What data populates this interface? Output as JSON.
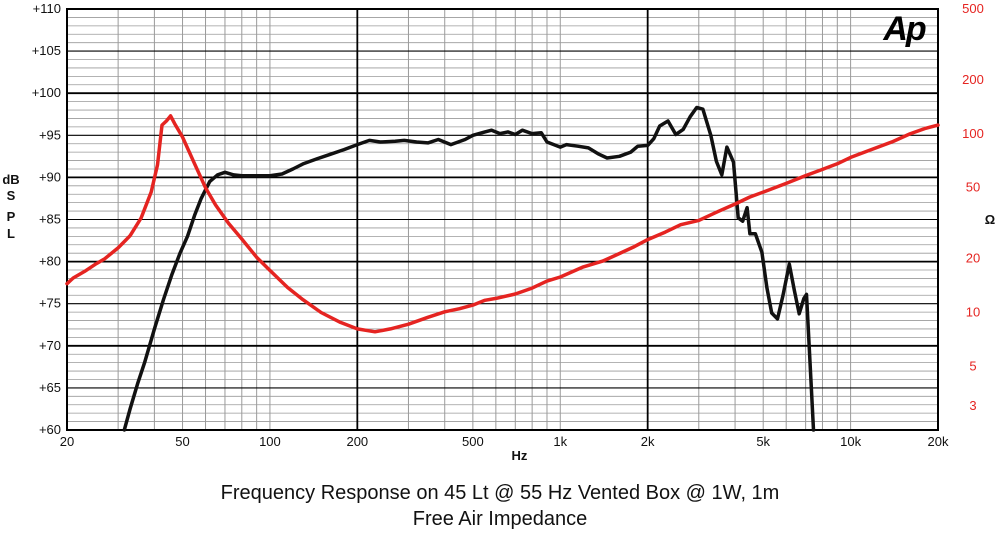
{
  "colors": {
    "spl": "#111111",
    "impedance": "#e52421",
    "grid_major": "#000000",
    "grid_minor": "#9a9a9a"
  },
  "logo": {
    "text": "Ap"
  },
  "caption": {
    "line1": "Frequency Response on 45 Lt @ 55 Hz Vented Box @ 1W, 1m",
    "line2": "Free Air Impedance"
  },
  "chart_data": {
    "type": "line",
    "title": "",
    "xlabel": "Hz",
    "ylabel_left": [
      "dB",
      "S",
      "P",
      "L"
    ],
    "ylabel_right": "Ω",
    "x_scale": "log",
    "xlim": [
      20,
      20000
    ],
    "ylim_left": [
      60,
      110
    ],
    "ylim_right": [
      2.2,
      500
    ],
    "y_right_scale": "log",
    "grid": true,
    "x_ticks": [
      {
        "v": 20,
        "label": "20"
      },
      {
        "v": 50,
        "label": "50"
      },
      {
        "v": 100,
        "label": "100"
      },
      {
        "v": 200,
        "label": "200"
      },
      {
        "v": 500,
        "label": "500"
      },
      {
        "v": 1000,
        "label": "1k"
      },
      {
        "v": 2000,
        "label": "2k"
      },
      {
        "v": 5000,
        "label": "5k"
      },
      {
        "v": 10000,
        "label": "10k"
      },
      {
        "v": 20000,
        "label": "20k"
      }
    ],
    "y_left_ticks": [
      {
        "v": 110,
        "label": "+110"
      },
      {
        "v": 105,
        "label": "+105"
      },
      {
        "v": 100,
        "label": "+100"
      },
      {
        "v": 95,
        "label": "+95"
      },
      {
        "v": 90,
        "label": "+90"
      },
      {
        "v": 85,
        "label": "+85"
      },
      {
        "v": 80,
        "label": "+80"
      },
      {
        "v": 75,
        "label": "+75"
      },
      {
        "v": 70,
        "label": "+70"
      },
      {
        "v": 65,
        "label": "+65"
      },
      {
        "v": 60,
        "label": "+60"
      }
    ],
    "y_right_ticks": [
      {
        "v": 500,
        "label": "500"
      },
      {
        "v": 200,
        "label": "200"
      },
      {
        "v": 100,
        "label": "100"
      },
      {
        "v": 50,
        "label": "50"
      },
      {
        "v": 20,
        "label": "20"
      },
      {
        "v": 10,
        "label": "10"
      },
      {
        "v": 5,
        "label": "5"
      },
      {
        "v": 3,
        "label": "3"
      }
    ],
    "series": [
      {
        "key": "spl",
        "axis": "left",
        "points": [
          [
            31.5,
            60
          ],
          [
            33,
            62.5
          ],
          [
            35,
            65.5
          ],
          [
            37,
            68
          ],
          [
            40,
            72
          ],
          [
            43,
            75.5
          ],
          [
            46,
            78.5
          ],
          [
            49,
            81
          ],
          [
            52,
            83
          ],
          [
            55,
            85.5
          ],
          [
            58,
            87.5
          ],
          [
            62,
            89.5
          ],
          [
            66,
            90.3
          ],
          [
            70,
            90.6
          ],
          [
            75,
            90.3
          ],
          [
            80,
            90.2
          ],
          [
            90,
            90.2
          ],
          [
            100,
            90.2
          ],
          [
            110,
            90.4
          ],
          [
            120,
            91
          ],
          [
            130,
            91.6
          ],
          [
            145,
            92.2
          ],
          [
            160,
            92.7
          ],
          [
            180,
            93.3
          ],
          [
            200,
            93.9
          ],
          [
            220,
            94.4
          ],
          [
            240,
            94.2
          ],
          [
            270,
            94.3
          ],
          [
            290,
            94.4
          ],
          [
            320,
            94.2
          ],
          [
            350,
            94.1
          ],
          [
            380,
            94.5
          ],
          [
            420,
            93.9
          ],
          [
            470,
            94.5
          ],
          [
            500,
            95.0
          ],
          [
            550,
            95.4
          ],
          [
            580,
            95.6
          ],
          [
            620,
            95.2
          ],
          [
            660,
            95.4
          ],
          [
            700,
            95.1
          ],
          [
            740,
            95.6
          ],
          [
            800,
            95.2
          ],
          [
            860,
            95.3
          ],
          [
            900,
            94.2
          ],
          [
            950,
            93.9
          ],
          [
            1000,
            93.6
          ],
          [
            1050,
            93.9
          ],
          [
            1150,
            93.7
          ],
          [
            1250,
            93.5
          ],
          [
            1350,
            92.8
          ],
          [
            1450,
            92.3
          ],
          [
            1600,
            92.5
          ],
          [
            1750,
            93.0
          ],
          [
            1850,
            93.7
          ],
          [
            2000,
            93.8
          ],
          [
            2100,
            94.6
          ],
          [
            2200,
            96.1
          ],
          [
            2350,
            96.7
          ],
          [
            2500,
            95.1
          ],
          [
            2650,
            95.7
          ],
          [
            2800,
            97.2
          ],
          [
            2950,
            98.3
          ],
          [
            3100,
            98.1
          ],
          [
            3300,
            95.0
          ],
          [
            3450,
            91.9
          ],
          [
            3600,
            90.3
          ],
          [
            3750,
            93.6
          ],
          [
            3950,
            91.8
          ],
          [
            4100,
            85.2
          ],
          [
            4250,
            84.8
          ],
          [
            4400,
            86.4
          ],
          [
            4500,
            83.3
          ],
          [
            4700,
            83.3
          ],
          [
            4950,
            81.1
          ],
          [
            5150,
            76.9
          ],
          [
            5350,
            73.9
          ],
          [
            5600,
            73.2
          ],
          [
            5850,
            76.0
          ],
          [
            6150,
            79.7
          ],
          [
            6400,
            76.6
          ],
          [
            6650,
            73.8
          ],
          [
            6900,
            75.6
          ],
          [
            7050,
            76.1
          ],
          [
            7150,
            72.0
          ],
          [
            7300,
            66.0
          ],
          [
            7450,
            60
          ]
        ]
      },
      {
        "key": "impedance",
        "axis": "right",
        "points": [
          [
            20,
            14.5
          ],
          [
            21,
            15.6
          ],
          [
            23,
            17.0
          ],
          [
            25,
            18.6
          ],
          [
            27,
            20.0
          ],
          [
            30,
            23.0
          ],
          [
            33,
            26.9
          ],
          [
            36,
            33.8
          ],
          [
            39,
            47.3
          ],
          [
            41,
            67.0
          ],
          [
            42.5,
            112
          ],
          [
            44,
            118
          ],
          [
            45.5,
            126
          ],
          [
            47,
            114
          ],
          [
            50,
            96
          ],
          [
            55,
            68
          ],
          [
            60,
            50
          ],
          [
            65,
            40
          ],
          [
            72,
            31.6
          ],
          [
            80,
            25.8
          ],
          [
            90,
            20.4
          ],
          [
            100,
            17.2
          ],
          [
            115,
            13.8
          ],
          [
            130,
            11.8
          ],
          [
            150,
            10.0
          ],
          [
            175,
            8.8
          ],
          [
            200,
            8.1
          ],
          [
            230,
            7.8
          ],
          [
            260,
            8.1
          ],
          [
            300,
            8.6
          ],
          [
            350,
            9.4
          ],
          [
            400,
            10.1
          ],
          [
            450,
            10.5
          ],
          [
            500,
            11.0
          ],
          [
            550,
            11.7
          ],
          [
            600,
            12.0
          ],
          [
            700,
            12.7
          ],
          [
            800,
            13.7
          ],
          [
            900,
            15.0
          ],
          [
            1000,
            15.8
          ],
          [
            1200,
            18.0
          ],
          [
            1400,
            19.4
          ],
          [
            1600,
            21.4
          ],
          [
            1800,
            23.4
          ],
          [
            2000,
            25.6
          ],
          [
            2300,
            28.2
          ],
          [
            2600,
            31.0
          ],
          [
            3000,
            32.8
          ],
          [
            3500,
            36.8
          ],
          [
            4000,
            40.5
          ],
          [
            4500,
            44.3
          ],
          [
            5000,
            47.2
          ],
          [
            6000,
            52.8
          ],
          [
            7000,
            58.4
          ],
          [
            8000,
            63.3
          ],
          [
            9000,
            68.0
          ],
          [
            10000,
            73.8
          ],
          [
            12000,
            82.6
          ],
          [
            14000,
            90.6
          ],
          [
            16000,
            100.0
          ],
          [
            18000,
            107.0
          ],
          [
            20000,
            112.0
          ]
        ]
      }
    ]
  }
}
